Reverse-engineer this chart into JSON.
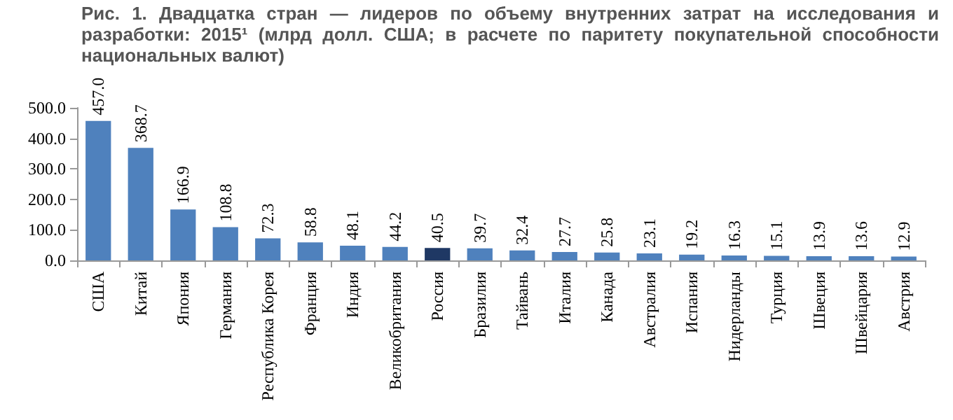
{
  "chart_data": {
    "type": "bar",
    "title": "Рис. 1.  Двадцатка стран — лидеров по объему внутренних затрат на исследования и разработки: 2015¹ (млрд долл. США; в расчете по паритету покупательной способности национальных валют)",
    "categories": [
      "США",
      "Китай",
      "Япония",
      "Германия",
      "Республика Корея",
      "Франция",
      "Индия",
      "Великобритания",
      "Россия",
      "Бразилия",
      "Тайвань",
      "Италия",
      "Канада",
      "Австралия",
      "Испания",
      "Нидерланды",
      "Турция",
      "Швеция",
      "Швейцария",
      "Австрия"
    ],
    "values": [
      457.0,
      368.7,
      166.9,
      108.8,
      72.3,
      58.8,
      48.1,
      44.2,
      40.5,
      39.7,
      32.4,
      27.7,
      25.8,
      23.1,
      19.2,
      16.3,
      15.1,
      13.9,
      13.6,
      12.9
    ],
    "value_labels": [
      "457.0",
      "368.7",
      "166.9",
      "108.8",
      "72.3",
      "58.8",
      "48.1",
      "44.2",
      "40.5",
      "39.7",
      "32.4",
      "27.7",
      "25.8",
      "23.1",
      "19.2",
      "16.3",
      "15.1",
      "13.9",
      "13.6",
      "12.9"
    ],
    "colors": [
      "#4f81bd",
      "#4f81bd",
      "#4f81bd",
      "#4f81bd",
      "#4f81bd",
      "#4f81bd",
      "#4f81bd",
      "#4f81bd",
      "#1f3864",
      "#4f81bd",
      "#4f81bd",
      "#4f81bd",
      "#4f81bd",
      "#4f81bd",
      "#4f81bd",
      "#4f81bd",
      "#4f81bd",
      "#4f81bd",
      "#4f81bd",
      "#4f81bd"
    ],
    "ylim": [
      0,
      500
    ],
    "yticks": [
      {
        "value": 0,
        "label": "0.0"
      },
      {
        "value": 100,
        "label": "100.0"
      },
      {
        "value": 200,
        "label": "200.0"
      },
      {
        "value": 300,
        "label": "300.0"
      },
      {
        "value": 400,
        "label": "400.0"
      },
      {
        "value": 500,
        "label": "500.0"
      }
    ],
    "grid": false
  }
}
